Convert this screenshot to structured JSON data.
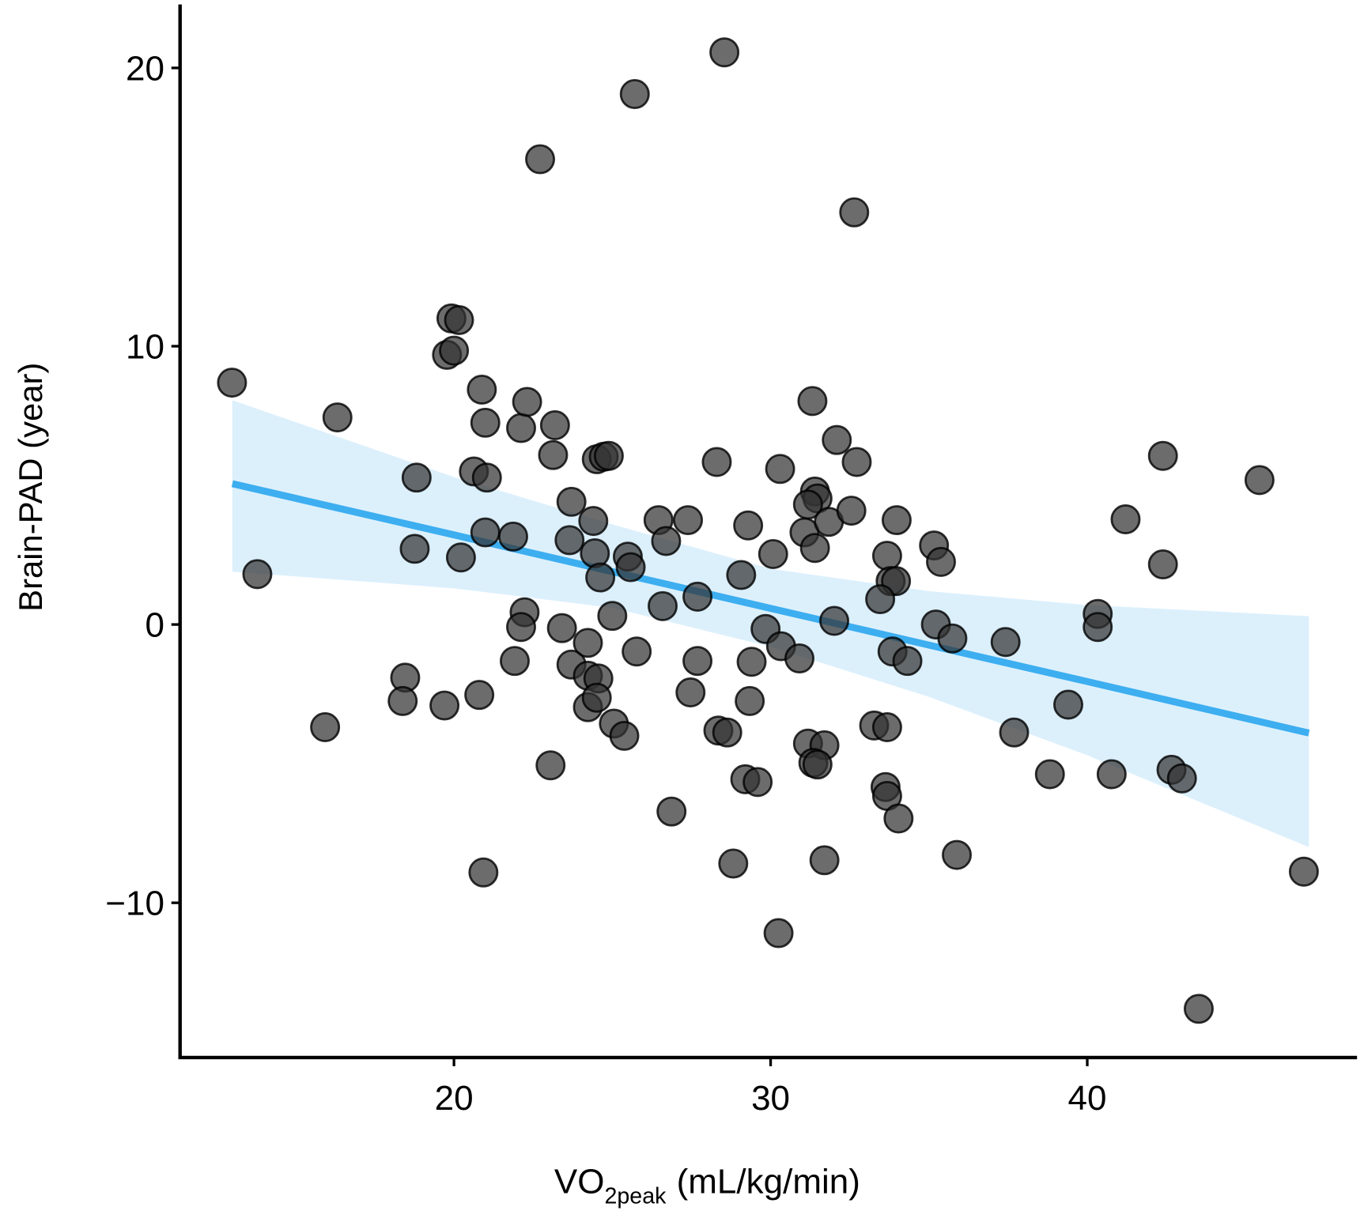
{
  "chart_data": {
    "type": "scatter",
    "x_label": {
      "main": "VO",
      "subscript": "2peak",
      "rest": "(mL/kg/min)"
    },
    "y_label": "Brain-PAD (year)",
    "xlim": [
      11.35,
      48.52
    ],
    "ylim": [
      -15.56,
      22.28
    ],
    "xticks": [
      20,
      30,
      40
    ],
    "yticks": [
      {
        "value": -10,
        "label": "−10"
      },
      0,
      10,
      20
    ],
    "point_color": "#333333",
    "x": [
      28.54,
      25.71,
      22.72,
      32.64,
      12.99,
      13.79,
      16.32,
      15.93,
      18.82,
      18.76,
      18.46,
      18.38,
      19.7,
      19.92,
      20.16,
      19.78,
      20.0,
      20.88,
      20.99,
      20.63,
      21.04,
      20.99,
      20.22,
      20.8,
      20.93,
      21.87,
      21.92,
      22.12,
      22.31,
      22.23,
      22.12,
      23.19,
      23.13,
      23.71,
      23.65,
      23.41,
      23.05,
      23.71,
      24.23,
      24.23,
      24.23,
      24.4,
      24.45,
      24.62,
      24.51,
      24.73,
      24.89,
      24.56,
      24.51,
      25.0,
      25.05,
      25.38,
      25.49,
      25.58,
      25.77,
      26.46,
      26.7,
      26.59,
      26.87,
      27.39,
      27.69,
      27.69,
      27.47,
      28.3,
      28.35,
      28.63,
      28.82,
      29.29,
      29.07,
      29.4,
      29.34,
      29.2,
      29.59,
      29.84,
      30.08,
      30.3,
      30.33,
      30.91,
      30.25,
      31.32,
      31.4,
      31.48,
      31.18,
      31.07,
      31.4,
      31.84,
      31.18,
      31.7,
      31.35,
      31.48,
      31.7,
      32.01,
      32.09,
      32.72,
      32.55,
      33.27,
      33.68,
      33.63,
      33.68,
      34.04,
      33.98,
      33.68,
      33.79,
      33.96,
      33.46,
      33.85,
      34.32,
      35.16,
      35.38,
      35.22,
      35.74,
      35.88,
      37.42,
      37.69,
      38.82,
      39.4,
      40.33,
      40.33,
      40.77,
      41.21,
      42.39,
      42.39,
      42.66,
      42.99,
      43.52,
      45.44,
      46.84
    ],
    "y": [
      20.56,
      19.06,
      16.72,
      14.81,
      8.69,
      1.81,
      7.44,
      -3.69,
      5.28,
      2.72,
      -1.91,
      -2.75,
      -2.91,
      11.0,
      10.94,
      9.69,
      9.84,
      8.44,
      7.25,
      5.5,
      5.28,
      3.31,
      2.41,
      -2.53,
      -8.91,
      3.16,
      -1.31,
      7.06,
      8.0,
      0.44,
      -0.09,
      7.16,
      6.09,
      4.41,
      3.03,
      -0.13,
      -5.06,
      -1.44,
      -0.66,
      -1.84,
      -2.97,
      3.72,
      2.56,
      1.69,
      5.94,
      6.03,
      6.06,
      -1.94,
      -2.63,
      0.31,
      -3.56,
      -4.0,
      2.44,
      2.06,
      -0.97,
      3.75,
      3.0,
      0.66,
      -6.72,
      3.75,
      1.0,
      -1.31,
      -2.44,
      5.84,
      -3.81,
      -3.88,
      -8.59,
      3.56,
      1.78,
      -1.34,
      -2.75,
      -5.56,
      -5.66,
      -0.16,
      2.53,
      5.59,
      -0.78,
      -1.22,
      -11.09,
      8.03,
      4.78,
      4.53,
      4.31,
      3.31,
      2.75,
      3.69,
      -4.28,
      -4.34,
      -4.97,
      -5.03,
      -8.47,
      0.13,
      6.63,
      5.84,
      4.09,
      -3.63,
      -3.69,
      -5.84,
      -6.16,
      -6.97,
      3.75,
      2.47,
      1.56,
      1.56,
      0.91,
      -0.97,
      -1.31,
      2.84,
      2.25,
      0.0,
      -0.5,
      -8.28,
      -0.63,
      -3.88,
      -5.38,
      -2.88,
      0.38,
      -0.09,
      -5.38,
      3.78,
      6.06,
      2.16,
      -5.22,
      -5.53,
      -13.81,
      5.19,
      -8.88
    ],
    "fit": {
      "color": "#3daef0",
      "band_color": "#bfe3f9",
      "x": [
        13,
        20,
        25,
        30,
        35,
        40,
        47
      ],
      "y": [
        5.06,
        3.22,
        1.9,
        0.58,
        -0.74,
        -2.05,
        -3.9
      ],
      "upper": [
        8.06,
        5.3,
        3.6,
        2.0,
        1.2,
        0.7,
        0.3
      ],
      "lower": [
        1.9,
        1.3,
        0.6,
        -0.8,
        -2.6,
        -4.7,
        -8.0
      ]
    }
  }
}
